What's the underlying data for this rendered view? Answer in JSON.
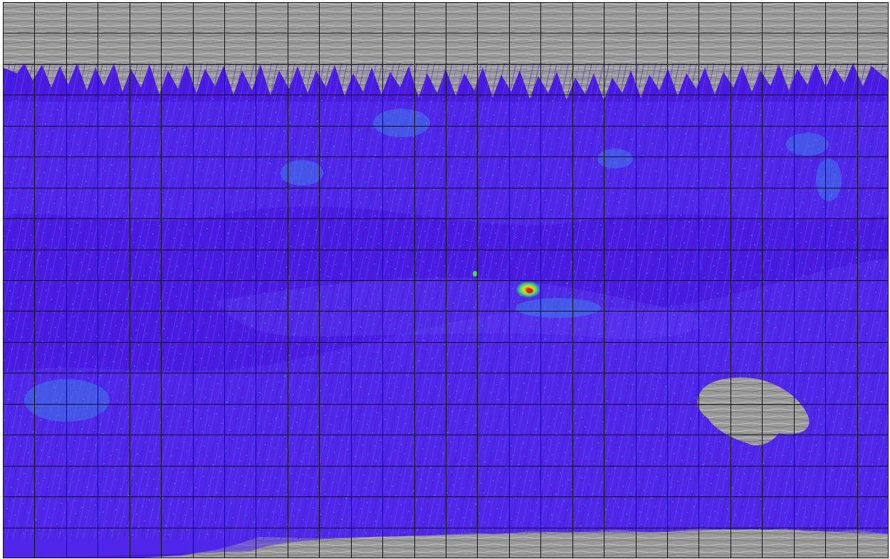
{
  "map": {
    "projection": "simple-cylindrical",
    "grid": {
      "visible": true,
      "columns": 28,
      "rows": 18,
      "line_color": "#111111"
    },
    "colors": {
      "no_data_terrain": "#9a9a9a",
      "terrain_shadow": "#6f6f6f",
      "terrain_highlight": "#c8c8c8",
      "base_density": "#4a1be0",
      "low": "#5530ee",
      "medium": "#3d7be8",
      "elevated": "#2fc6e0",
      "high": "#3ee05a",
      "peak": "#f0d020",
      "max": "#e02010"
    },
    "regions": [
      {
        "name": "north-polar-terrain",
        "fill": "no_data_terrain"
      },
      {
        "name": "south-polar-terrain",
        "fill": "no_data_terrain"
      },
      {
        "name": "southern-basin-terrain",
        "fill": "no_data_terrain"
      },
      {
        "name": "equatorial-hotspot",
        "fill": "max"
      }
    ]
  }
}
